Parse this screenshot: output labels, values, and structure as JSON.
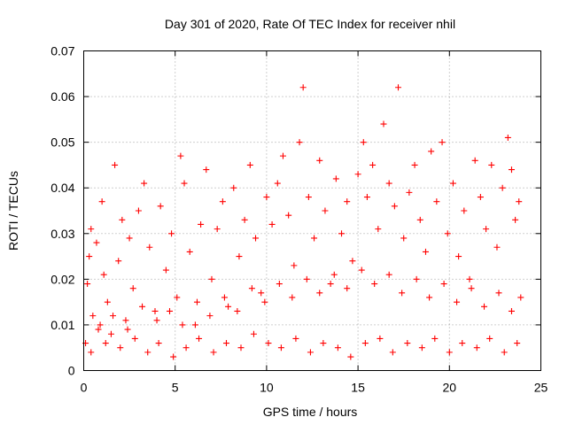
{
  "chart_data": {
    "type": "scatter",
    "title": "Day 301 of 2020, Rate Of TEC Index for receiver nhil",
    "xlabel": "GPS time / hours",
    "ylabel": "ROTI / TECUs",
    "xlim": [
      0,
      25
    ],
    "ylim": [
      0,
      0.07
    ],
    "xticks": [
      "0",
      "5",
      "10",
      "15",
      "20",
      "25"
    ],
    "yticks": [
      "0",
      "0.01",
      "0.02",
      "0.03",
      "0.04",
      "0.05",
      "0.06",
      "0.07"
    ],
    "grid": true,
    "marker": "+",
    "color": "#ff0000",
    "series": [
      {
        "name": "ROTI",
        "points": [
          [
            0.1,
            0.006
          ],
          [
            0.2,
            0.019
          ],
          [
            0.3,
            0.025
          ],
          [
            0.4,
            0.031
          ],
          [
            0.5,
            0.012
          ],
          [
            0.7,
            0.028
          ],
          [
            0.8,
            0.009
          ],
          [
            1.0,
            0.037
          ],
          [
            1.1,
            0.021
          ],
          [
            1.3,
            0.015
          ],
          [
            1.5,
            0.008
          ],
          [
            1.7,
            0.045
          ],
          [
            1.9,
            0.024
          ],
          [
            2.1,
            0.033
          ],
          [
            2.3,
            0.011
          ],
          [
            2.5,
            0.029
          ],
          [
            2.7,
            0.018
          ],
          [
            3.0,
            0.035
          ],
          [
            3.3,
            0.041
          ],
          [
            3.6,
            0.027
          ],
          [
            3.9,
            0.013
          ],
          [
            4.2,
            0.036
          ],
          [
            4.5,
            0.022
          ],
          [
            4.8,
            0.03
          ],
          [
            5.1,
            0.016
          ],
          [
            5.3,
            0.047
          ],
          [
            5.5,
            0.041
          ],
          [
            5.8,
            0.026
          ],
          [
            6.1,
            0.01
          ],
          [
            6.4,
            0.032
          ],
          [
            6.7,
            0.044
          ],
          [
            7.0,
            0.02
          ],
          [
            7.3,
            0.031
          ],
          [
            7.6,
            0.037
          ],
          [
            7.9,
            0.014
          ],
          [
            8.2,
            0.04
          ],
          [
            8.5,
            0.025
          ],
          [
            8.8,
            0.033
          ],
          [
            9.1,
            0.045
          ],
          [
            9.4,
            0.029
          ],
          [
            9.7,
            0.017
          ],
          [
            10.0,
            0.038
          ],
          [
            10.3,
            0.032
          ],
          [
            10.6,
            0.041
          ],
          [
            10.9,
            0.047
          ],
          [
            11.2,
            0.034
          ],
          [
            11.5,
            0.023
          ],
          [
            11.8,
            0.05
          ],
          [
            12.0,
            0.062
          ],
          [
            12.3,
            0.038
          ],
          [
            12.6,
            0.029
          ],
          [
            12.9,
            0.046
          ],
          [
            13.2,
            0.035
          ],
          [
            13.5,
            0.019
          ],
          [
            13.8,
            0.042
          ],
          [
            14.1,
            0.03
          ],
          [
            14.4,
            0.037
          ],
          [
            14.7,
            0.024
          ],
          [
            15.0,
            0.043
          ],
          [
            15.3,
            0.05
          ],
          [
            15.5,
            0.038
          ],
          [
            15.8,
            0.045
          ],
          [
            16.1,
            0.031
          ],
          [
            16.4,
            0.054
          ],
          [
            16.7,
            0.041
          ],
          [
            17.0,
            0.036
          ],
          [
            17.2,
            0.062
          ],
          [
            17.5,
            0.029
          ],
          [
            17.8,
            0.039
          ],
          [
            18.1,
            0.045
          ],
          [
            18.4,
            0.033
          ],
          [
            18.7,
            0.026
          ],
          [
            19.0,
            0.048
          ],
          [
            19.3,
            0.037
          ],
          [
            19.6,
            0.05
          ],
          [
            19.9,
            0.03
          ],
          [
            20.2,
            0.041
          ],
          [
            20.5,
            0.025
          ],
          [
            20.8,
            0.035
          ],
          [
            21.1,
            0.02
          ],
          [
            21.4,
            0.046
          ],
          [
            21.7,
            0.038
          ],
          [
            22.0,
            0.031
          ],
          [
            22.3,
            0.045
          ],
          [
            22.6,
            0.027
          ],
          [
            22.9,
            0.04
          ],
          [
            23.2,
            0.051
          ],
          [
            23.4,
            0.044
          ],
          [
            23.6,
            0.033
          ],
          [
            23.8,
            0.037
          ],
          [
            0.4,
            0.004
          ],
          [
            1.2,
            0.006
          ],
          [
            2.0,
            0.005
          ],
          [
            2.8,
            0.007
          ],
          [
            3.5,
            0.004
          ],
          [
            4.1,
            0.006
          ],
          [
            4.9,
            0.003
          ],
          [
            5.6,
            0.005
          ],
          [
            6.3,
            0.007
          ],
          [
            7.1,
            0.004
          ],
          [
            7.8,
            0.006
          ],
          [
            8.6,
            0.005
          ],
          [
            9.3,
            0.008
          ],
          [
            10.1,
            0.006
          ],
          [
            10.8,
            0.005
          ],
          [
            11.6,
            0.007
          ],
          [
            12.4,
            0.004
          ],
          [
            13.1,
            0.006
          ],
          [
            13.9,
            0.005
          ],
          [
            14.6,
            0.003
          ],
          [
            15.4,
            0.006
          ],
          [
            16.2,
            0.007
          ],
          [
            16.9,
            0.004
          ],
          [
            17.7,
            0.006
          ],
          [
            18.5,
            0.005
          ],
          [
            19.2,
            0.007
          ],
          [
            20.0,
            0.004
          ],
          [
            20.7,
            0.006
          ],
          [
            21.5,
            0.005
          ],
          [
            22.2,
            0.007
          ],
          [
            23.0,
            0.004
          ],
          [
            23.7,
            0.006
          ],
          [
            0.9,
            0.01
          ],
          [
            1.6,
            0.012
          ],
          [
            2.4,
            0.009
          ],
          [
            3.2,
            0.014
          ],
          [
            4.0,
            0.011
          ],
          [
            4.7,
            0.013
          ],
          [
            5.4,
            0.01
          ],
          [
            6.2,
            0.015
          ],
          [
            6.9,
            0.012
          ],
          [
            7.7,
            0.016
          ],
          [
            8.4,
            0.013
          ],
          [
            9.2,
            0.018
          ],
          [
            9.9,
            0.015
          ],
          [
            10.7,
            0.019
          ],
          [
            11.4,
            0.016
          ],
          [
            12.2,
            0.02
          ],
          [
            12.9,
            0.017
          ],
          [
            13.7,
            0.021
          ],
          [
            14.4,
            0.018
          ],
          [
            15.2,
            0.022
          ],
          [
            15.9,
            0.019
          ],
          [
            16.7,
            0.021
          ],
          [
            17.4,
            0.017
          ],
          [
            18.2,
            0.02
          ],
          [
            18.9,
            0.016
          ],
          [
            19.7,
            0.019
          ],
          [
            20.4,
            0.015
          ],
          [
            21.2,
            0.018
          ],
          [
            21.9,
            0.014
          ],
          [
            22.7,
            0.017
          ],
          [
            23.4,
            0.013
          ],
          [
            23.9,
            0.016
          ]
        ]
      }
    ]
  }
}
